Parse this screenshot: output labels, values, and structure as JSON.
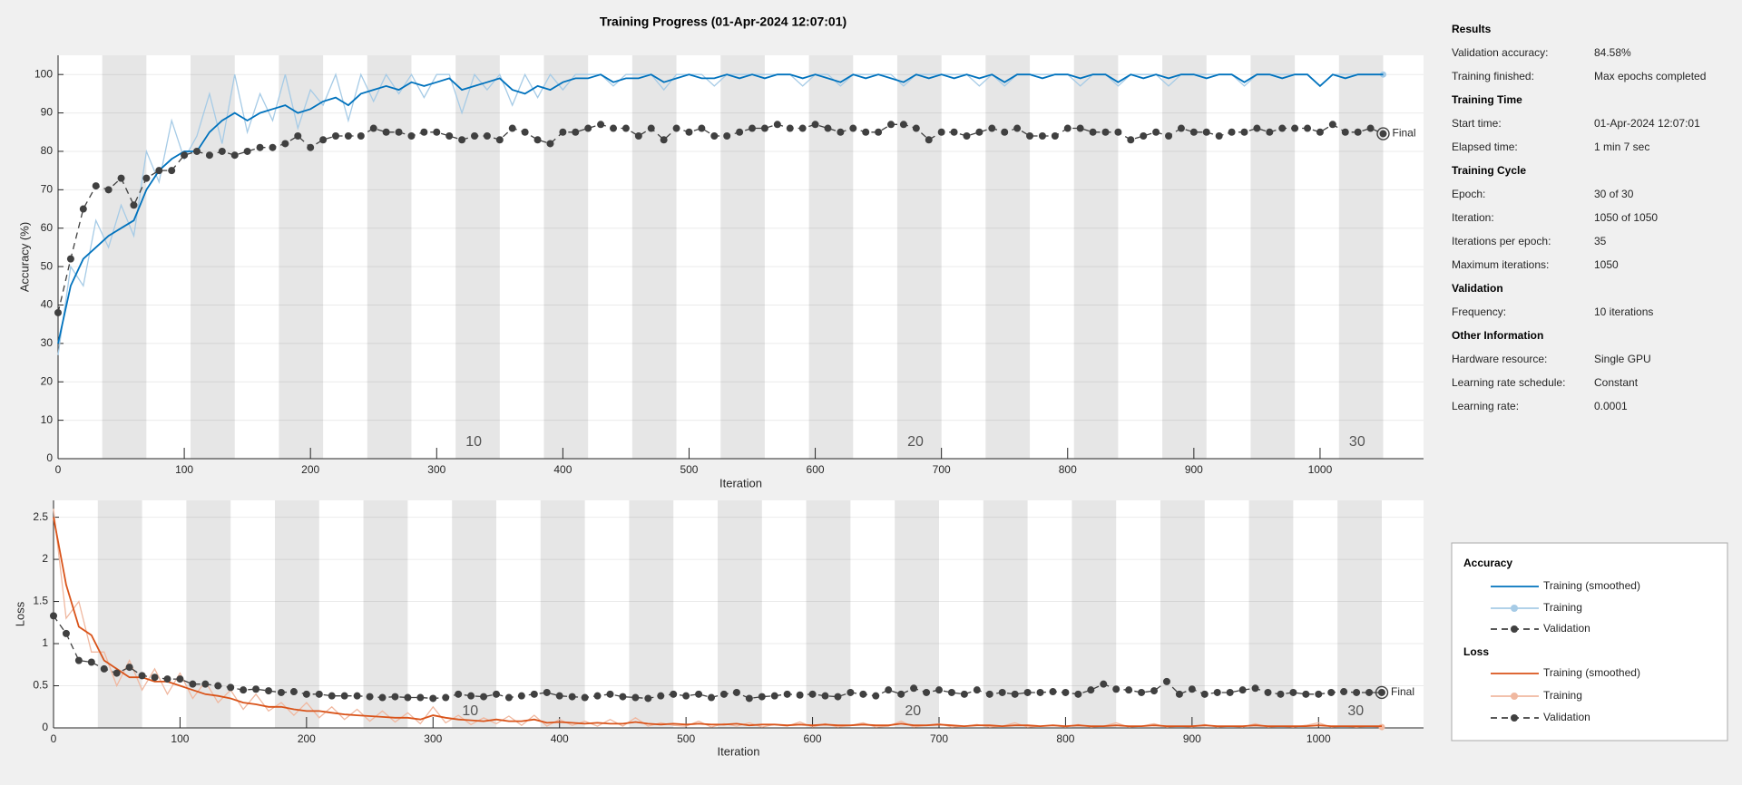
{
  "chart_data": [
    {
      "type": "line",
      "title": "Training Progress (01-Apr-2024 12:07:01)",
      "x_label": "Iteration",
      "y_label": "Accuracy (%)",
      "legend_title": "Accuracy",
      "annotation": "Final",
      "xlim": [
        0,
        1082
      ],
      "ylim": [
        0,
        105
      ],
      "xticks": [
        0,
        100,
        200,
        300,
        400,
        500,
        600,
        700,
        800,
        900,
        1000
      ],
      "yticks": [
        0,
        10,
        20,
        30,
        40,
        50,
        60,
        70,
        80,
        90,
        100
      ],
      "grid": true,
      "epoch_size": 35,
      "epochs": 30,
      "epoch_labels": [
        10,
        20,
        30
      ],
      "x": [
        0,
        10,
        20,
        30,
        40,
        50,
        60,
        70,
        80,
        90,
        100,
        110,
        120,
        130,
        140,
        150,
        160,
        170,
        180,
        190,
        200,
        210,
        220,
        230,
        240,
        250,
        260,
        270,
        280,
        290,
        300,
        310,
        320,
        330,
        340,
        350,
        360,
        370,
        380,
        390,
        400,
        410,
        420,
        430,
        440,
        450,
        460,
        470,
        480,
        490,
        500,
        510,
        520,
        530,
        540,
        550,
        560,
        570,
        580,
        590,
        600,
        610,
        620,
        630,
        640,
        650,
        660,
        670,
        680,
        690,
        700,
        710,
        720,
        730,
        740,
        750,
        760,
        770,
        780,
        790,
        800,
        810,
        820,
        830,
        840,
        850,
        860,
        870,
        880,
        890,
        900,
        910,
        920,
        930,
        940,
        950,
        960,
        970,
        980,
        990,
        1000,
        1010,
        1020,
        1030,
        1040,
        1050
      ],
      "series": [
        {
          "name": "Training (smoothed)",
          "color": "#0072bd",
          "values": [
            30,
            45,
            52,
            55,
            58,
            60,
            62,
            70,
            75,
            78,
            80,
            80,
            85,
            88,
            90,
            88,
            90,
            91,
            92,
            90,
            91,
            93,
            94,
            92,
            95,
            96,
            97,
            96,
            98,
            97,
            98,
            99,
            96,
            97,
            98,
            99,
            96,
            95,
            97,
            96,
            98,
            99,
            99,
            100,
            98,
            99,
            99,
            100,
            98,
            99,
            100,
            99,
            99,
            100,
            99,
            100,
            99,
            100,
            100,
            99,
            100,
            99,
            98,
            100,
            99,
            100,
            99,
            98,
            100,
            99,
            100,
            99,
            100,
            99,
            100,
            98,
            100,
            100,
            99,
            100,
            100,
            99,
            100,
            100,
            98,
            100,
            99,
            100,
            99,
            100,
            100,
            99,
            100,
            100,
            98,
            100,
            100,
            99,
            100,
            100,
            97,
            100,
            99,
            100,
            100,
            100
          ]
        },
        {
          "name": "Training",
          "color": "#a6cbe6",
          "final_marker": true,
          "values": [
            27,
            50,
            45,
            62,
            55,
            66,
            58,
            80,
            72,
            88,
            78,
            84,
            95,
            82,
            100,
            85,
            95,
            88,
            100,
            86,
            96,
            92,
            100,
            88,
            100,
            93,
            100,
            95,
            100,
            94,
            100,
            100,
            90,
            100,
            96,
            100,
            92,
            100,
            94,
            100,
            96,
            100,
            100,
            100,
            97,
            100,
            100,
            100,
            96,
            100,
            100,
            100,
            97,
            100,
            100,
            100,
            100,
            100,
            100,
            97,
            100,
            100,
            97,
            100,
            100,
            100,
            100,
            97,
            100,
            100,
            100,
            100,
            100,
            97,
            100,
            97,
            100,
            100,
            100,
            100,
            100,
            97,
            100,
            100,
            97,
            100,
            100,
            100,
            97,
            100,
            100,
            100,
            100,
            100,
            97,
            100,
            100,
            100,
            100,
            100,
            97,
            100,
            100,
            100,
            100,
            100
          ]
        },
        {
          "name": "Validation",
          "color": "#404040",
          "dashed": true,
          "markers": true,
          "values": [
            38,
            52,
            65,
            71,
            70,
            73,
            66,
            73,
            75,
            75,
            79,
            80,
            79,
            80,
            79,
            80,
            81,
            81,
            82,
            84,
            81,
            83,
            84,
            84,
            84,
            86,
            85,
            85,
            84,
            85,
            85,
            84,
            83,
            84,
            84,
            83,
            86,
            85,
            83,
            82,
            85,
            85,
            86,
            87,
            86,
            86,
            84,
            86,
            83,
            86,
            85,
            86,
            84,
            84,
            85,
            86,
            86,
            87,
            86,
            86,
            87,
            86,
            85,
            86,
            85,
            85,
            87,
            87,
            86,
            83,
            85,
            85,
            84,
            85,
            86,
            85,
            86,
            84,
            84,
            84,
            86,
            86,
            85,
            85,
            85,
            83,
            84,
            85,
            84,
            86,
            85,
            85,
            84,
            85,
            85,
            86,
            85,
            86,
            86,
            86,
            85,
            87,
            85,
            85,
            86,
            84.58
          ]
        }
      ]
    },
    {
      "type": "line",
      "x_label": "Iteration",
      "y_label": "Loss",
      "legend_title": "Loss",
      "annotation": "Final",
      "xlim": [
        0,
        1083
      ],
      "ylim": [
        0,
        2.7
      ],
      "xticks": [
        0,
        100,
        200,
        300,
        400,
        500,
        600,
        700,
        800,
        900,
        1000
      ],
      "yticks": [
        0,
        0.5,
        1,
        1.5,
        2,
        2.5
      ],
      "grid": true,
      "epoch_size": 35,
      "epochs": 30,
      "epoch_labels": [
        10,
        20,
        30
      ],
      "x": [
        0,
        10,
        20,
        30,
        40,
        50,
        60,
        70,
        80,
        90,
        100,
        110,
        120,
        130,
        140,
        150,
        160,
        170,
        180,
        190,
        200,
        210,
        220,
        230,
        240,
        250,
        260,
        270,
        280,
        290,
        300,
        310,
        320,
        330,
        340,
        350,
        360,
        370,
        380,
        390,
        400,
        410,
        420,
        430,
        440,
        450,
        460,
        470,
        480,
        490,
        500,
        510,
        520,
        530,
        540,
        550,
        560,
        570,
        580,
        590,
        600,
        610,
        620,
        630,
        640,
        650,
        660,
        670,
        680,
        690,
        700,
        710,
        720,
        730,
        740,
        750,
        760,
        770,
        780,
        790,
        800,
        810,
        820,
        830,
        840,
        850,
        860,
        870,
        880,
        890,
        900,
        910,
        920,
        930,
        940,
        950,
        960,
        970,
        980,
        990,
        1000,
        1010,
        1020,
        1030,
        1040,
        1050
      ],
      "series": [
        {
          "name": "Training (smoothed)",
          "color": "#d95319",
          "values": [
            2.5,
            1.7,
            1.2,
            1.1,
            0.8,
            0.7,
            0.6,
            0.6,
            0.55,
            0.55,
            0.5,
            0.45,
            0.4,
            0.38,
            0.35,
            0.3,
            0.28,
            0.25,
            0.25,
            0.22,
            0.2,
            0.2,
            0.18,
            0.16,
            0.15,
            0.14,
            0.13,
            0.12,
            0.12,
            0.1,
            0.15,
            0.12,
            0.1,
            0.09,
            0.08,
            0.1,
            0.08,
            0.08,
            0.1,
            0.06,
            0.07,
            0.06,
            0.05,
            0.06,
            0.05,
            0.05,
            0.07,
            0.05,
            0.04,
            0.05,
            0.04,
            0.05,
            0.04,
            0.04,
            0.05,
            0.03,
            0.04,
            0.04,
            0.03,
            0.04,
            0.03,
            0.04,
            0.03,
            0.03,
            0.04,
            0.03,
            0.03,
            0.05,
            0.03,
            0.03,
            0.04,
            0.03,
            0.02,
            0.03,
            0.03,
            0.02,
            0.03,
            0.03,
            0.02,
            0.03,
            0.02,
            0.03,
            0.02,
            0.02,
            0.03,
            0.02,
            0.02,
            0.03,
            0.02,
            0.02,
            0.02,
            0.03,
            0.02,
            0.02,
            0.02,
            0.03,
            0.02,
            0.02,
            0.02,
            0.02,
            0.03,
            0.02,
            0.02,
            0.02,
            0.02,
            0.02
          ]
        },
        {
          "name": "Training",
          "color": "#f0b8a0",
          "final_marker": true,
          "values": [
            2.6,
            1.3,
            1.5,
            0.9,
            0.9,
            0.5,
            0.8,
            0.45,
            0.7,
            0.4,
            0.65,
            0.35,
            0.55,
            0.3,
            0.45,
            0.22,
            0.4,
            0.2,
            0.3,
            0.15,
            0.3,
            0.12,
            0.25,
            0.1,
            0.22,
            0.08,
            0.2,
            0.07,
            0.18,
            0.05,
            0.25,
            0.06,
            0.15,
            0.04,
            0.12,
            0.05,
            0.14,
            0.03,
            0.15,
            0.02,
            0.1,
            0.03,
            0.08,
            0.02,
            0.1,
            0.02,
            0.12,
            0.02,
            0.06,
            0.03,
            0.02,
            0.08,
            0.01,
            0.05,
            0.02,
            0.06,
            0.01,
            0.04,
            0.02,
            0.07,
            0.01,
            0.05,
            0.01,
            0.03,
            0.06,
            0.01,
            0.02,
            0.08,
            0.01,
            0.03,
            0.05,
            0.01,
            0.02,
            0.04,
            0.01,
            0.02,
            0.06,
            0.01,
            0.02,
            0.03,
            0.01,
            0.04,
            0.01,
            0.02,
            0.06,
            0.01,
            0.02,
            0.05,
            0.01,
            0.02,
            0.01,
            0.04,
            0.01,
            0.02,
            0.01,
            0.05,
            0.01,
            0.02,
            0.01,
            0.03,
            0.06,
            0.01,
            0.02,
            0.01,
            0.02,
            0.01
          ]
        },
        {
          "name": "Validation",
          "color": "#404040",
          "dashed": true,
          "markers": true,
          "values": [
            1.33,
            1.12,
            0.8,
            0.78,
            0.7,
            0.65,
            0.72,
            0.62,
            0.6,
            0.58,
            0.58,
            0.52,
            0.52,
            0.5,
            0.48,
            0.45,
            0.46,
            0.44,
            0.42,
            0.43,
            0.4,
            0.4,
            0.38,
            0.38,
            0.38,
            0.37,
            0.36,
            0.37,
            0.36,
            0.36,
            0.35,
            0.36,
            0.4,
            0.38,
            0.37,
            0.4,
            0.36,
            0.38,
            0.4,
            0.42,
            0.38,
            0.37,
            0.36,
            0.38,
            0.4,
            0.37,
            0.36,
            0.35,
            0.38,
            0.4,
            0.38,
            0.4,
            0.36,
            0.4,
            0.42,
            0.35,
            0.37,
            0.38,
            0.4,
            0.39,
            0.4,
            0.38,
            0.37,
            0.42,
            0.4,
            0.38,
            0.45,
            0.4,
            0.47,
            0.42,
            0.45,
            0.42,
            0.4,
            0.45,
            0.4,
            0.42,
            0.4,
            0.42,
            0.42,
            0.43,
            0.42,
            0.4,
            0.45,
            0.52,
            0.46,
            0.45,
            0.42,
            0.44,
            0.55,
            0.4,
            0.46,
            0.4,
            0.42,
            0.42,
            0.45,
            0.47,
            0.42,
            0.4,
            0.42,
            0.4,
            0.4,
            0.42,
            0.43,
            0.42,
            0.42,
            0.42
          ]
        }
      ]
    }
  ],
  "results": {
    "sections": [
      {
        "title": "Results",
        "rows": [
          [
            "Validation accuracy:",
            "84.58%"
          ],
          [
            "Training finished:",
            "Max epochs completed"
          ]
        ]
      },
      {
        "title": "Training Time",
        "rows": [
          [
            "Start time:",
            "01-Apr-2024 12:07:01"
          ],
          [
            "Elapsed time:",
            "1 min 7 sec"
          ]
        ]
      },
      {
        "title": "Training Cycle",
        "rows": [
          [
            "Epoch:",
            "30 of 30"
          ],
          [
            "Iteration:",
            "1050 of 1050"
          ],
          [
            "Iterations per epoch:",
            "35"
          ],
          [
            "Maximum iterations:",
            "1050"
          ]
        ]
      },
      {
        "title": "Validation",
        "rows": [
          [
            "Frequency:",
            "10 iterations"
          ]
        ]
      },
      {
        "title": "Other Information",
        "rows": [
          [
            "Hardware resource:",
            "Single GPU"
          ],
          [
            "Learning rate schedule:",
            "Constant"
          ],
          [
            "Learning rate:",
            "0.0001"
          ]
        ]
      }
    ]
  }
}
